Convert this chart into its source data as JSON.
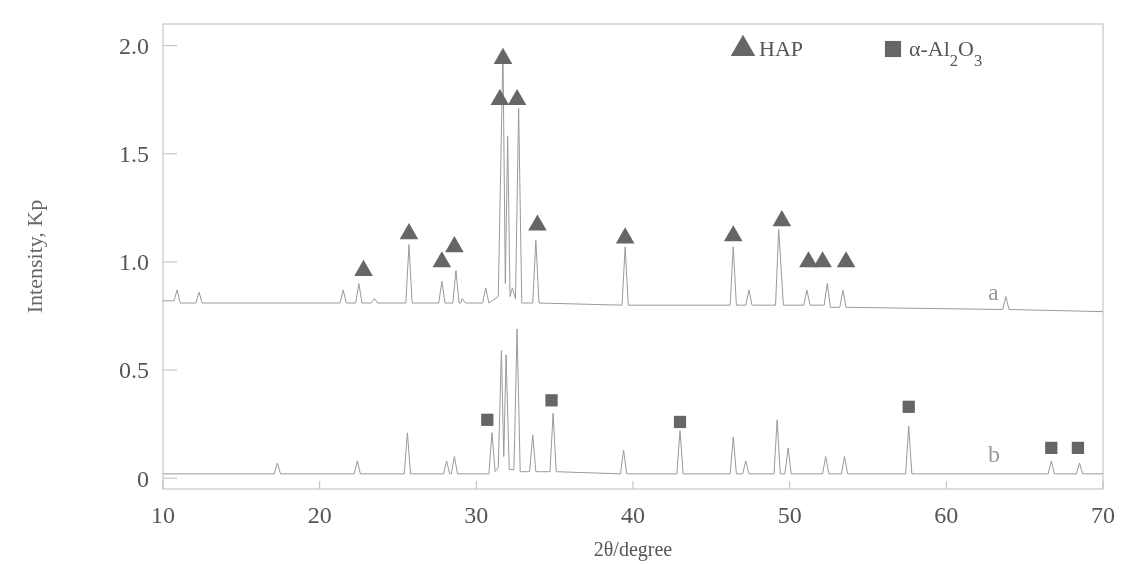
{
  "chart_data": {
    "type": "line",
    "xlabel": "2θ/degree",
    "ylabel": "Intensity, Kp",
    "xlim": [
      10,
      70
    ],
    "ylim": [
      -0.05,
      2.1
    ],
    "xticks": [
      10,
      20,
      30,
      40,
      50,
      60,
      70
    ],
    "yticks": [
      {
        "value": 0,
        "label": "0"
      },
      {
        "value": 0.5,
        "label": "0.5"
      },
      {
        "value": 1,
        "label": "1.0"
      },
      {
        "value": 1.5,
        "label": "1.5"
      },
      {
        "value": 2,
        "label": "2.0"
      }
    ],
    "grid": false,
    "legend": "top right",
    "series": [
      {
        "name": "a",
        "color": "#9a9a9a",
        "x": [
          10,
          10.7,
          10.9,
          11.1,
          12.1,
          12.3,
          12.5,
          21.3,
          21.5,
          21.7,
          22.3,
          22.5,
          22.7,
          23.3,
          23.5,
          23.7,
          25.5,
          25.7,
          25.9,
          27.6,
          27.8,
          28.0,
          28.5,
          28.7,
          28.9,
          29.0,
          29.1,
          29.3,
          30.4,
          30.6,
          30.8,
          31.4,
          31.7,
          31.85,
          32.0,
          32.15,
          32.3,
          32.5,
          32.7,
          32.9,
          33.6,
          33.8,
          34.0,
          39.3,
          39.5,
          39.7,
          46.2,
          46.4,
          46.6,
          47.2,
          47.4,
          47.6,
          49.1,
          49.3,
          49.6,
          50.9,
          51.1,
          51.3,
          52.2,
          52.4,
          52.6,
          53.2,
          53.4,
          53.6,
          63.6,
          63.8,
          64.0,
          70
        ],
        "values": [
          0.82,
          0.82,
          0.87,
          0.81,
          0.81,
          0.86,
          0.81,
          0.81,
          0.87,
          0.81,
          0.81,
          0.9,
          0.81,
          0.81,
          0.83,
          0.81,
          0.81,
          1.08,
          0.81,
          0.81,
          0.91,
          0.81,
          0.81,
          0.96,
          0.81,
          0.81,
          0.83,
          0.81,
          0.81,
          0.88,
          0.81,
          0.84,
          1.98,
          0.9,
          1.58,
          0.84,
          0.88,
          0.83,
          1.71,
          0.81,
          0.81,
          1.1,
          0.81,
          0.8,
          1.07,
          0.8,
          0.8,
          1.07,
          0.8,
          0.8,
          0.87,
          0.8,
          0.8,
          1.15,
          0.8,
          0.8,
          0.87,
          0.8,
          0.8,
          0.9,
          0.79,
          0.79,
          0.87,
          0.79,
          0.78,
          0.84,
          0.78,
          0.77
        ]
      },
      {
        "name": "b",
        "color": "#9a9a9a",
        "x": [
          10,
          17.1,
          17.3,
          17.5,
          22.2,
          22.4,
          22.6,
          25.4,
          25.6,
          25.8,
          27.9,
          28.1,
          28.3,
          28.4,
          28.6,
          28.8,
          30.8,
          31.0,
          31.2,
          31.4,
          31.6,
          31.75,
          31.9,
          32.1,
          32.4,
          32.6,
          32.8,
          33.4,
          33.6,
          33.8,
          34.7,
          34.9,
          35.1,
          39.2,
          39.4,
          39.6,
          42.8,
          43.0,
          43.2,
          46.2,
          46.4,
          46.6,
          47.0,
          47.2,
          47.4,
          49.0,
          49.2,
          49.4,
          49.7,
          49.9,
          50.1,
          52.1,
          52.3,
          52.5,
          53.3,
          53.5,
          53.7,
          57.4,
          57.6,
          57.8,
          66.5,
          66.7,
          66.9,
          68.3,
          68.5,
          68.7,
          70
        ],
        "values": [
          0.02,
          0.02,
          0.07,
          0.02,
          0.02,
          0.08,
          0.02,
          0.02,
          0.21,
          0.02,
          0.02,
          0.08,
          0.02,
          0.02,
          0.1,
          0.02,
          0.02,
          0.21,
          0.03,
          0.05,
          0.59,
          0.1,
          0.57,
          0.04,
          0.04,
          0.69,
          0.03,
          0.03,
          0.2,
          0.03,
          0.03,
          0.3,
          0.03,
          0.02,
          0.13,
          0.02,
          0.02,
          0.22,
          0.02,
          0.02,
          0.19,
          0.02,
          0.02,
          0.08,
          0.02,
          0.02,
          0.27,
          0.02,
          0.02,
          0.14,
          0.02,
          0.02,
          0.1,
          0.02,
          0.02,
          0.1,
          0.02,
          0.02,
          0.24,
          0.02,
          0.02,
          0.08,
          0.02,
          0.02,
          0.07,
          0.02,
          0.02
        ]
      },
      {
        "name": "HAP",
        "type": "scatter",
        "marker": "triangle",
        "color": "#666666",
        "x": [
          22.8,
          25.7,
          27.8,
          28.6,
          31.5,
          31.7,
          32.6,
          33.9,
          39.5,
          46.4,
          49.5,
          51.2,
          52.1,
          53.6
        ],
        "values": [
          0.96,
          1.13,
          1.0,
          1.07,
          1.75,
          1.94,
          1.75,
          1.17,
          1.11,
          1.12,
          1.19,
          1.0,
          1.0,
          1.0
        ]
      },
      {
        "name": "α-Al$_{2}$O$_{3}$",
        "type": "scatter",
        "marker": "square",
        "color": "#666666",
        "x": [
          30.7,
          34.8,
          43.0,
          57.6,
          66.7,
          68.4
        ],
        "values": [
          0.27,
          0.36,
          0.26,
          0.33,
          0.14,
          0.14
        ]
      }
    ]
  }
}
